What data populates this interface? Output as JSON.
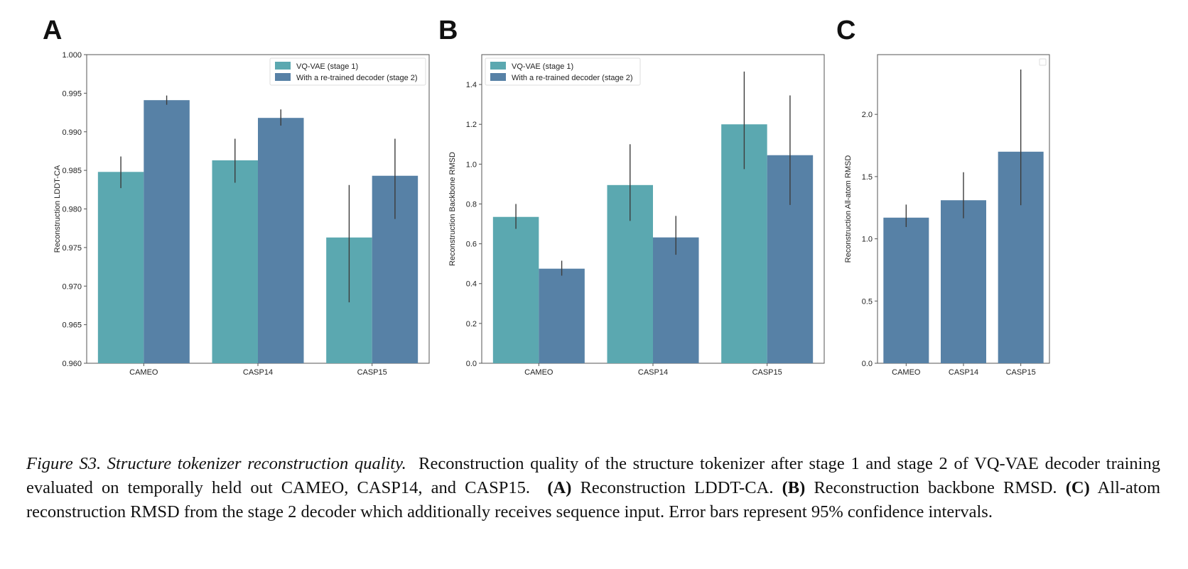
{
  "colors": {
    "stage1": "#5ba8b0",
    "stage2": "#5781a6",
    "errorbar": "#3c3c3c",
    "axis": "#555555"
  },
  "chart_data": [
    {
      "panel_letter": "A",
      "type": "bar",
      "categories": [
        "CAMEO",
        "CASP14",
        "CASP15"
      ],
      "series": [
        {
          "name": "VQ-VAE (stage 1)",
          "values": [
            0.9848,
            0.9863,
            0.9763
          ],
          "ci_low": [
            0.9827,
            0.9834,
            0.9679
          ],
          "ci_high": [
            0.9868,
            0.9891,
            0.9831
          ]
        },
        {
          "name": "With a re-trained decoder (stage 2)",
          "values": [
            0.9941,
            0.9918,
            0.9843
          ],
          "ci_low": [
            0.9935,
            0.9908,
            0.9787
          ],
          "ci_high": [
            0.9947,
            0.9929,
            0.9891
          ]
        }
      ],
      "ylabel": "Reconstruction LDDT-CA",
      "ylim": [
        0.96,
        1.0
      ],
      "yticks": [
        "0.960",
        "0.965",
        "0.970",
        "0.975",
        "0.980",
        "0.985",
        "0.990",
        "0.995",
        "1.000"
      ],
      "legend": "top-right",
      "grid": false
    },
    {
      "panel_letter": "B",
      "type": "bar",
      "categories": [
        "CAMEO",
        "CASP14",
        "CASP15"
      ],
      "series": [
        {
          "name": "VQ-VAE (stage 1)",
          "values": [
            0.735,
            0.895,
            1.2
          ],
          "ci_low": [
            0.675,
            0.715,
            0.975
          ],
          "ci_high": [
            0.8,
            1.1,
            1.465
          ]
        },
        {
          "name": "With a re-trained decoder (stage 2)",
          "values": [
            0.475,
            0.632,
            1.045
          ],
          "ci_low": [
            0.44,
            0.545,
            0.795
          ],
          "ci_high": [
            0.515,
            0.74,
            1.345
          ]
        }
      ],
      "ylabel": "Reconstruction Backbone RMSD",
      "ylim": [
        0,
        1.55
      ],
      "yticks": [
        "0.0",
        "0.2",
        "0.4",
        "0.6",
        "0.8",
        "1.0",
        "1.2",
        "1.4"
      ],
      "legend": "top-left",
      "grid": false
    },
    {
      "panel_letter": "C",
      "type": "bar",
      "categories": [
        "CAMEO",
        "CASP14",
        "CASP15"
      ],
      "series": [
        {
          "values": [
            1.17,
            1.31,
            1.7
          ],
          "ci_low": [
            1.095,
            1.165,
            1.27
          ],
          "ci_high": [
            1.275,
            1.535,
            2.36
          ]
        }
      ],
      "ylabel": "Reconstruction All-atom RMSD",
      "ylim": [
        0,
        2.48
      ],
      "yticks": [
        "0.0",
        "0.5",
        "1.0",
        "1.5",
        "2.0"
      ],
      "legend": "top-right (empty)",
      "grid": false
    }
  ],
  "caption": {
    "figure_label": "Figure S3.",
    "title": "Structure tokenizer reconstruction quality.",
    "text_1": "Reconstruction quality of the structure tokenizer after stage 1 and stage 2 of VQ-VAE decoder training evaluated on temporally held out CAMEO, CASP14, and CASP15.",
    "label_a": "(A)",
    "text_a": "Reconstruction LDDT-CA.",
    "label_b": "(B)",
    "text_b": "Reconstruction backbone RMSD.",
    "label_c": "(C)",
    "text_c": "All-atom reconstruction RMSD from the stage 2 decoder which additionally receives sequence input. Error bars represent 95% confidence intervals."
  }
}
